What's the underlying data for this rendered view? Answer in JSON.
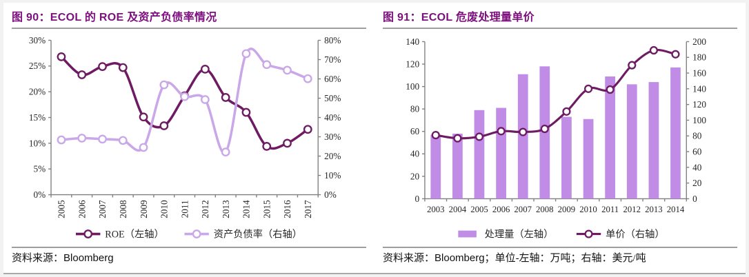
{
  "figures": [
    {
      "title": "图 90：ECOL 的 ROE 及资产负债率情况",
      "source_label": "资料来源：",
      "source_value": "Bloomberg",
      "source_units": ""
    },
    {
      "title": "图 91：ECOL 危废处理量单价",
      "source_label": "资料来源：",
      "source_value": "Bloomberg；",
      "source_units": "单位-左轴：万吨；右轴：美元/吨"
    }
  ],
  "colors": {
    "title_purple": "#7d0e7e",
    "dark_line": "#6e1b63",
    "light_line": "#c9a7e8",
    "bar_fill": "#c18ce6",
    "axis_gray": "#7f7f7f",
    "rule_gray": "#9e9e9e"
  },
  "chart_data": [
    {
      "type": "line",
      "title": "图 90：ECOL 的 ROE 及资产负债率情况",
      "categories": [
        "2005",
        "2006",
        "2007",
        "2008",
        "2009",
        "2010",
        "2011",
        "2012",
        "2013",
        "2014",
        "2015",
        "2016",
        "2017"
      ],
      "series": [
        {
          "name": "ROE（左轴）",
          "slug": "roe",
          "kind": "line",
          "axis": "left",
          "color": "#6e1b63",
          "values": [
            26.8,
            23.3,
            24.9,
            24.7,
            15.1,
            13.4,
            19.2,
            24.4,
            18.9,
            16.0,
            9.4,
            10.0,
            12.7
          ]
        },
        {
          "name": "资产负债率（右轴）",
          "slug": "debt-ratio",
          "kind": "line",
          "axis": "right",
          "color": "#c9a7e8",
          "values": [
            28.4,
            29.3,
            28.8,
            28.1,
            24.5,
            56.9,
            50.8,
            49.3,
            22.1,
            73.1,
            67.4,
            64.5,
            60.1
          ]
        }
      ],
      "left_axis": {
        "min": 0,
        "max": 30,
        "step": 5,
        "format": "percent"
      },
      "right_axis": {
        "min": 0,
        "max": 80,
        "step": 10,
        "format": "percent"
      },
      "legend_position": "bottom",
      "grid": false,
      "x_labels_rotated": true
    },
    {
      "type": "bar+line",
      "title": "图 91：ECOL 危废处理量单价",
      "categories": [
        "2003",
        "2004",
        "2005",
        "2006",
        "2007",
        "2008",
        "2009",
        "2010",
        "2011",
        "2012",
        "2013",
        "2014"
      ],
      "series": [
        {
          "name": "处理量（左轴）",
          "slug": "treatment-volume",
          "kind": "bar",
          "axis": "left",
          "color": "#c18ce6",
          "values": [
            57,
            58,
            79,
            81,
            111,
            118,
            73,
            71,
            109,
            102,
            104,
            117
          ]
        },
        {
          "name": "单价（右轴）",
          "slug": "unit-price",
          "kind": "line",
          "axis": "right",
          "color": "#6e1b63",
          "values": [
            81,
            77,
            79,
            86,
            85,
            89,
            111,
            140,
            139,
            170,
            189,
            184
          ]
        }
      ],
      "left_axis": {
        "min": 0,
        "max": 140,
        "step": 20,
        "format": "number"
      },
      "right_axis": {
        "min": 0,
        "max": 200,
        "step": 20,
        "format": "number"
      },
      "legend_position": "bottom",
      "grid": false,
      "x_labels_rotated": false
    }
  ]
}
